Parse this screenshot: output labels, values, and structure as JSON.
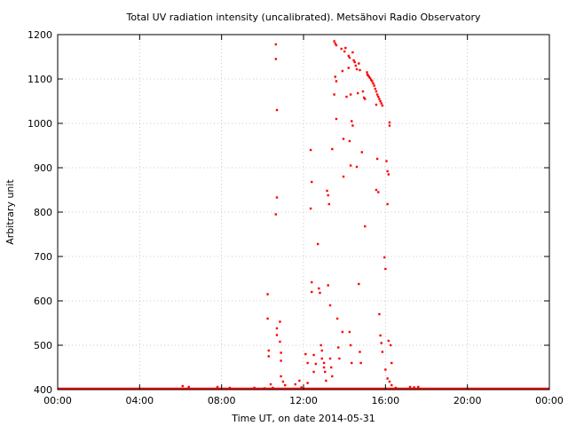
{
  "chart_data": {
    "type": "scatter",
    "title": "Total UV radiation intensity (uncalibrated). Metsähovi Radio Observatory",
    "xlabel": "Time UT, on date 2014-05-31",
    "ylabel": "Arbitrary unit",
    "xlim": [
      0,
      24
    ],
    "ylim": [
      400,
      1200
    ],
    "x_ticks": [
      {
        "value": 0,
        "label": "00:00"
      },
      {
        "value": 4,
        "label": "04:00"
      },
      {
        "value": 8,
        "label": "08:00"
      },
      {
        "value": 12,
        "label": "12:00"
      },
      {
        "value": 16,
        "label": "16:00"
      },
      {
        "value": 20,
        "label": "20:00"
      },
      {
        "value": 24,
        "label": "00:00"
      }
    ],
    "y_ticks": [
      {
        "value": 400,
        "label": "400"
      },
      {
        "value": 500,
        "label": "500"
      },
      {
        "value": 600,
        "label": "600"
      },
      {
        "value": 700,
        "label": "700"
      },
      {
        "value": 800,
        "label": "800"
      },
      {
        "value": 900,
        "label": "900"
      },
      {
        "value": 1000,
        "label": "1000"
      },
      {
        "value": 1100,
        "label": "1100"
      },
      {
        "value": 1200,
        "label": "1200"
      }
    ],
    "grid": true,
    "legend": "none",
    "color": "#ff0000",
    "baseline": {
      "value": 400,
      "from": 0,
      "to": 24
    },
    "points": [
      [
        6.1,
        408
      ],
      [
        6.4,
        406
      ],
      [
        7.8,
        406
      ],
      [
        8.4,
        404
      ],
      [
        9.6,
        404
      ],
      [
        10.1,
        402
      ],
      [
        10.25,
        615
      ],
      [
        10.25,
        560
      ],
      [
        10.3,
        488
      ],
      [
        10.3,
        475
      ],
      [
        10.4,
        412
      ],
      [
        10.5,
        404
      ],
      [
        10.65,
        1178
      ],
      [
        10.65,
        1145
      ],
      [
        10.7,
        1030
      ],
      [
        10.7,
        833
      ],
      [
        10.65,
        795
      ],
      [
        10.7,
        538
      ],
      [
        10.7,
        523
      ],
      [
        10.85,
        553
      ],
      [
        10.85,
        508
      ],
      [
        10.9,
        483
      ],
      [
        10.9,
        465
      ],
      [
        10.9,
        430
      ],
      [
        11.0,
        418
      ],
      [
        11.1,
        410
      ],
      [
        11.6,
        412
      ],
      [
        11.8,
        420
      ],
      [
        11.9,
        405
      ],
      [
        12.1,
        480
      ],
      [
        12.2,
        460
      ],
      [
        12.2,
        415
      ],
      [
        12.35,
        940
      ],
      [
        12.4,
        868
      ],
      [
        12.35,
        808
      ],
      [
        12.4,
        642
      ],
      [
        12.4,
        620
      ],
      [
        12.5,
        478
      ],
      [
        12.5,
        440
      ],
      [
        12.6,
        458
      ],
      [
        12.7,
        728
      ],
      [
        12.75,
        628
      ],
      [
        12.8,
        618
      ],
      [
        12.85,
        500
      ],
      [
        12.9,
        488
      ],
      [
        12.9,
        470
      ],
      [
        13.0,
        460
      ],
      [
        13.0,
        450
      ],
      [
        13.05,
        440
      ],
      [
        13.1,
        420
      ],
      [
        13.15,
        848
      ],
      [
        13.2,
        838
      ],
      [
        13.25,
        818
      ],
      [
        13.2,
        635
      ],
      [
        13.3,
        590
      ],
      [
        13.3,
        470
      ],
      [
        13.35,
        450
      ],
      [
        13.4,
        430
      ],
      [
        13.4,
        942
      ],
      [
        13.5,
        1185
      ],
      [
        13.55,
        1180
      ],
      [
        13.6,
        1176
      ],
      [
        13.55,
        1105
      ],
      [
        13.6,
        1095
      ],
      [
        13.5,
        1065
      ],
      [
        13.6,
        1010
      ],
      [
        13.65,
        560
      ],
      [
        13.7,
        495
      ],
      [
        13.75,
        470
      ],
      [
        13.85,
        1168
      ],
      [
        13.9,
        1118
      ],
      [
        13.95,
        965
      ],
      [
        13.95,
        880
      ],
      [
        13.9,
        530
      ],
      [
        14.0,
        1162
      ],
      [
        14.05,
        1170
      ],
      [
        14.1,
        1060
      ],
      [
        14.2,
        1152
      ],
      [
        14.25,
        1148
      ],
      [
        14.2,
        1125
      ],
      [
        14.3,
        1065
      ],
      [
        14.35,
        1005
      ],
      [
        14.4,
        995
      ],
      [
        14.25,
        960
      ],
      [
        14.3,
        905
      ],
      [
        14.25,
        530
      ],
      [
        14.3,
        500
      ],
      [
        14.35,
        460
      ],
      [
        14.4,
        1160
      ],
      [
        14.45,
        1142
      ],
      [
        14.5,
        1138
      ],
      [
        14.55,
        1130
      ],
      [
        14.6,
        1122
      ],
      [
        14.65,
        1068
      ],
      [
        14.7,
        1135
      ],
      [
        14.75,
        1120
      ],
      [
        14.6,
        902
      ],
      [
        14.7,
        638
      ],
      [
        14.75,
        485
      ],
      [
        14.8,
        460
      ],
      [
        14.85,
        935
      ],
      [
        14.9,
        1072
      ],
      [
        14.95,
        1058
      ],
      [
        15.0,
        1055
      ],
      [
        15.0,
        768
      ],
      [
        15.1,
        1115
      ],
      [
        15.12,
        1110
      ],
      [
        15.15,
        1108
      ],
      [
        15.2,
        1105
      ],
      [
        15.25,
        1102
      ],
      [
        15.3,
        1098
      ],
      [
        15.35,
        1095
      ],
      [
        15.4,
        1090
      ],
      [
        15.45,
        1085
      ],
      [
        15.5,
        1078
      ],
      [
        15.55,
        1072
      ],
      [
        15.6,
        1065
      ],
      [
        15.65,
        1060
      ],
      [
        15.7,
        1055
      ],
      [
        15.75,
        1050
      ],
      [
        15.8,
        1045
      ],
      [
        15.85,
        1040
      ],
      [
        15.55,
        1042
      ],
      [
        15.6,
        920
      ],
      [
        15.55,
        850
      ],
      [
        15.65,
        845
      ],
      [
        15.7,
        570
      ],
      [
        15.75,
        522
      ],
      [
        15.8,
        505
      ],
      [
        15.85,
        485
      ],
      [
        15.95,
        698
      ],
      [
        16.0,
        672
      ],
      [
        16.05,
        915
      ],
      [
        16.1,
        892
      ],
      [
        16.1,
        818
      ],
      [
        16.15,
        885
      ],
      [
        16.2,
        1002
      ],
      [
        16.2,
        995
      ],
      [
        16.15,
        510
      ],
      [
        16.25,
        500
      ],
      [
        16.3,
        460
      ],
      [
        16.0,
        445
      ],
      [
        16.1,
        425
      ],
      [
        16.2,
        418
      ],
      [
        16.3,
        410
      ],
      [
        16.5,
        404
      ],
      [
        17.2,
        406
      ],
      [
        17.4,
        405
      ],
      [
        17.6,
        406
      ]
    ]
  }
}
